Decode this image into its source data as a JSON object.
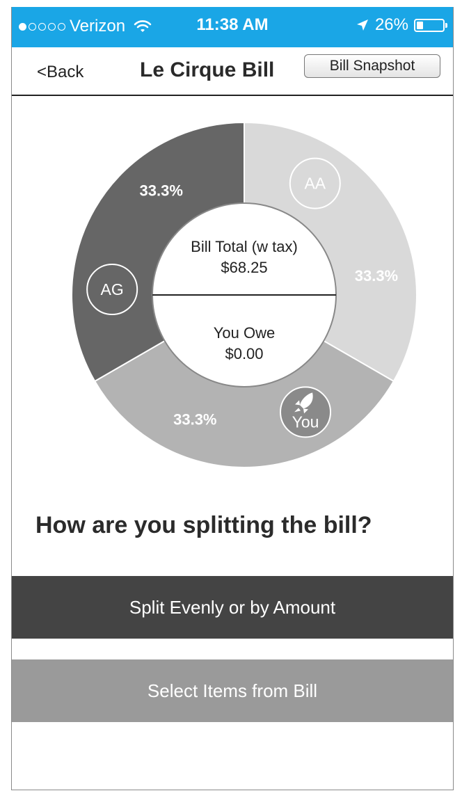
{
  "status_bar": {
    "carrier": "Verizon",
    "signal_dots_filled": 1,
    "signal_dots_total": 5,
    "time": "11:38 AM",
    "battery_text": "26%",
    "battery_level": 0.26
  },
  "nav": {
    "back_label": "<Back",
    "title": "Le Cirque Bill",
    "snapshot_label": "Bill Snapshot"
  },
  "chart_data": {
    "type": "pie",
    "slices": [
      {
        "label": "AA",
        "value": 33.3,
        "display": "33.3%",
        "color": "#d9d9d9"
      },
      {
        "label": "You",
        "value": 33.3,
        "display": "33.3%",
        "color": "#b3b3b3"
      },
      {
        "label": "AG",
        "value": 33.3,
        "display": "33.3%",
        "color": "#666666"
      }
    ],
    "center": {
      "total_label": "Bill Total (w tax)",
      "total_value": "$68.25",
      "owe_label": "You Owe",
      "owe_value": "$0.00"
    }
  },
  "question": "How are you splitting the bill?",
  "buttons": {
    "split_evenly": "Split Evenly or by Amount",
    "select_items": "Select Items from Bill"
  },
  "icons": {
    "you_badge": "rocket-icon",
    "wifi": "wifi-icon",
    "location": "location-arrow-icon"
  }
}
